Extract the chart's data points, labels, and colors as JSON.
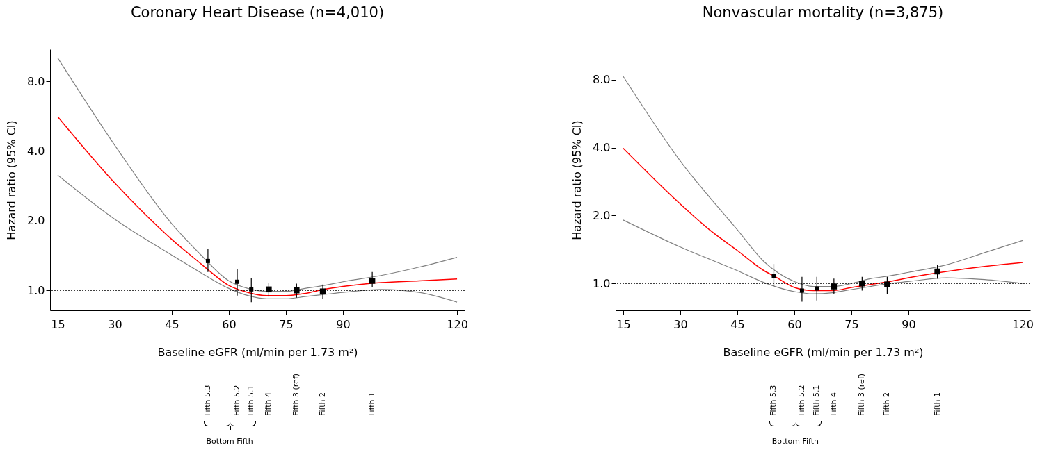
{
  "chart_data": [
    {
      "type": "line",
      "title": "Coronary Heart Disease (n=4,010)",
      "xlabel": "Baseline eGFR (ml/min per 1.73 m²)",
      "ylabel": "Hazard ratio (95% CI)",
      "log": "y",
      "xlim": [
        13,
        122
      ],
      "xticks": [
        15,
        30,
        45,
        60,
        75,
        90,
        120
      ],
      "ylim": [
        0.82,
        11.0
      ],
      "yticks": [
        {
          "value": 1,
          "label": "1.0"
        },
        {
          "value": 2,
          "label": "2.0"
        },
        {
          "value": 4,
          "label": "4.0"
        },
        {
          "value": 8,
          "label": "8.0"
        }
      ],
      "grid": false,
      "series": [
        {
          "color": "#808080",
          "x": [
            15,
            30,
            45,
            52,
            60,
            65,
            70,
            75,
            80,
            85,
            90,
            100,
            110,
            120
          ],
          "values": [
            10.1,
            4.24,
            1.94,
            1.46,
            1.1,
            1.02,
            0.99,
            0.99,
            1.02,
            1.05,
            1.09,
            1.16,
            1.26,
            1.39
          ]
        },
        {
          "color": "#808080",
          "x": [
            15,
            30,
            45,
            52,
            60,
            65,
            70,
            75,
            80,
            85,
            90,
            100,
            110,
            120
          ],
          "values": [
            3.15,
            2.03,
            1.42,
            1.21,
            1.02,
            0.95,
            0.92,
            0.92,
            0.94,
            0.96,
            0.98,
            1.01,
            0.98,
            0.89
          ]
        },
        {
          "color": "#ff0000",
          "x": [
            15,
            30,
            37.5,
            45,
            52,
            55,
            60,
            65,
            70,
            75,
            80,
            85,
            90,
            100,
            110,
            120
          ],
          "values": [
            5.63,
            2.91,
            2.17,
            1.66,
            1.33,
            1.21,
            1.05,
            0.98,
            0.95,
            0.95,
            0.97,
            1.01,
            1.04,
            1.08,
            1.1,
            1.12
          ]
        },
        {
          "type": "bubble",
          "marker": "square",
          "color": "#000000",
          "x": [
            54.5,
            62.2,
            65.9,
            70.5,
            77.8,
            84.7,
            97.7
          ],
          "values": [
            1.34,
            1.09,
            1.01,
            1.01,
            1.0,
            0.99,
            1.1
          ],
          "sizes": [
            0.5,
            0.5,
            0.5,
            1,
            1,
            1,
            1
          ],
          "errors": [
            [
              1.2,
              1.51
            ],
            [
              0.95,
              1.24
            ],
            [
              0.89,
              1.13
            ],
            [
              0.94,
              1.08
            ],
            [
              0.93,
              1.07
            ],
            [
              0.92,
              1.06
            ],
            [
              1.03,
              1.2
            ]
          ]
        }
      ],
      "ref_lines": [
        {
          "axis": "y",
          "value": 1,
          "color": "#000000",
          "line_style": "dotted"
        }
      ],
      "annotations": [
        "Fifth 5.3",
        "Fifth 5.2",
        "Fifth 5.1",
        "Fifth 4",
        "Fifth 3 (ref)",
        "Fifth 2",
        "Fifth 1",
        "Bottom Fifth"
      ]
    },
    {
      "type": "line",
      "title": "Nonvascular mortality (n=3,875)",
      "xlabel": "Baseline eGFR (ml/min per 1.73 m²)",
      "ylabel": "Hazard ratio (95% CI)",
      "log": "y",
      "xlim": [
        13,
        122
      ],
      "xticks": [
        15,
        30,
        45,
        60,
        75,
        90,
        120
      ],
      "ylim": [
        0.76,
        10.9
      ],
      "yticks": [
        {
          "value": 1,
          "label": "1.0"
        },
        {
          "value": 2,
          "label": "2.0"
        },
        {
          "value": 4,
          "label": "4.0"
        },
        {
          "value": 8,
          "label": "8.0"
        }
      ],
      "grid": false,
      "series": [
        {
          "color": "#808080",
          "x": [
            15,
            30,
            45,
            52,
            60,
            65,
            70,
            75,
            80,
            85,
            90,
            100,
            110,
            120
          ],
          "values": [
            8.27,
            3.49,
            1.73,
            1.25,
            1.02,
            0.97,
            0.97,
            1.0,
            1.05,
            1.08,
            1.12,
            1.21,
            1.37,
            1.55
          ]
        },
        {
          "color": "#808080",
          "x": [
            15,
            30,
            45,
            52,
            60,
            65,
            70,
            75,
            80,
            85,
            90,
            100,
            110,
            120
          ],
          "values": [
            1.91,
            1.45,
            1.14,
            1.01,
            0.92,
            0.9,
            0.91,
            0.94,
            0.97,
            1.0,
            1.02,
            1.06,
            1.04,
            1.0
          ]
        },
        {
          "color": "#ff0000",
          "x": [
            15,
            30,
            37.5,
            45,
            52,
            55,
            60,
            65,
            70,
            75,
            80,
            85,
            90,
            100,
            110,
            120
          ],
          "values": [
            3.97,
            2.25,
            1.74,
            1.4,
            1.14,
            1.07,
            0.96,
            0.93,
            0.93,
            0.96,
            0.99,
            1.02,
            1.06,
            1.13,
            1.19,
            1.24
          ]
        },
        {
          "type": "bubble",
          "marker": "square",
          "color": "#000000",
          "x": [
            54.6,
            62.0,
            65.9,
            70.4,
            77.8,
            84.4,
            97.6
          ],
          "values": [
            1.08,
            0.93,
            0.95,
            0.97,
            1.0,
            0.99,
            1.13
          ],
          "sizes": [
            0.5,
            0.5,
            0.5,
            1,
            1,
            1,
            1
          ],
          "errors": [
            [
              0.96,
              1.22
            ],
            [
              0.83,
              1.07
            ],
            [
              0.84,
              1.07
            ],
            [
              0.9,
              1.05
            ],
            [
              0.93,
              1.07
            ],
            [
              0.9,
              1.07
            ],
            [
              1.05,
              1.21
            ]
          ]
        }
      ],
      "ref_lines": [
        {
          "axis": "y",
          "value": 1,
          "color": "#000000",
          "line_style": "dotted"
        }
      ],
      "annotations": [
        "Fifth 5.3",
        "Fifth 5.2",
        "Fifth 5.1",
        "Fifth 4",
        "Fifth 3 (ref)",
        "Fifth 2",
        "Fifth 1",
        "Bottom Fifth"
      ]
    }
  ]
}
